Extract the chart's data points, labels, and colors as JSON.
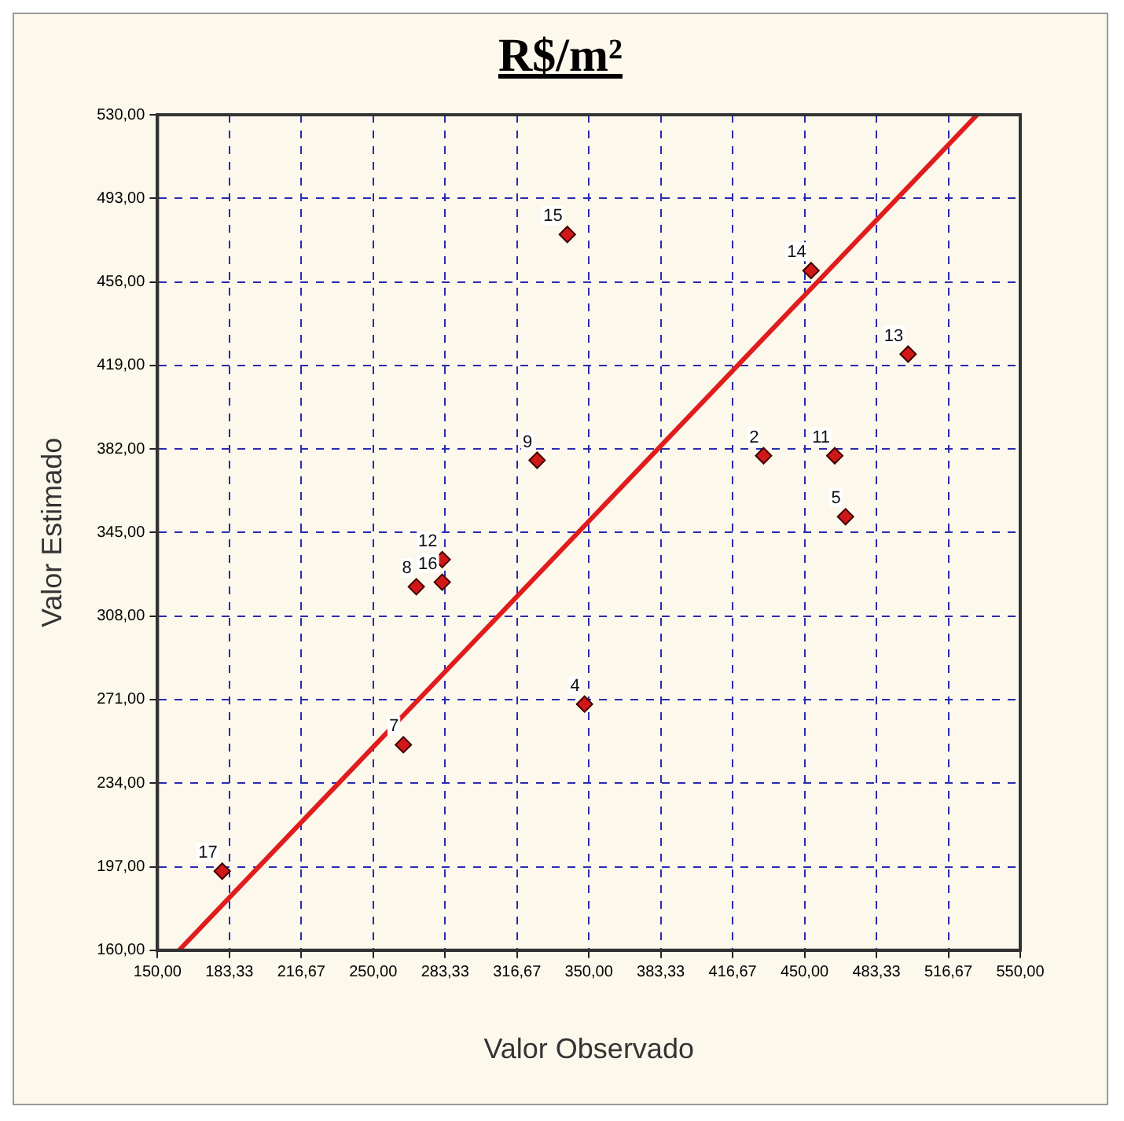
{
  "chart_data": {
    "type": "scatter",
    "title": "R$/m²",
    "xlabel": "Valor Observado",
    "ylabel": "Valor Estimado",
    "xlim": [
      150,
      550
    ],
    "ylim": [
      160,
      530
    ],
    "xticks": [
      {
        "value": 150,
        "label": "150,00"
      },
      {
        "value": 183.33,
        "label": "183,33"
      },
      {
        "value": 216.67,
        "label": "216,67"
      },
      {
        "value": 250,
        "label": "250,00"
      },
      {
        "value": 283.33,
        "label": "283,33"
      },
      {
        "value": 316.67,
        "label": "316,67"
      },
      {
        "value": 350,
        "label": "350,00"
      },
      {
        "value": 383.33,
        "label": "383,33"
      },
      {
        "value": 416.67,
        "label": "416,67"
      },
      {
        "value": 450,
        "label": "450,00"
      },
      {
        "value": 483.33,
        "label": "483,33"
      },
      {
        "value": 516.67,
        "label": "516,67"
      },
      {
        "value": 550,
        "label": "550,00"
      }
    ],
    "yticks": [
      {
        "value": 160,
        "label": "160,00"
      },
      {
        "value": 197,
        "label": "197,00"
      },
      {
        "value": 234,
        "label": "234,00"
      },
      {
        "value": 271,
        "label": "271,00"
      },
      {
        "value": 308,
        "label": "308,00"
      },
      {
        "value": 345,
        "label": "345,00"
      },
      {
        "value": 382,
        "label": "382,00"
      },
      {
        "value": 419,
        "label": "419,00"
      },
      {
        "value": 456,
        "label": "456,00"
      },
      {
        "value": 493,
        "label": "493,00"
      },
      {
        "value": 530,
        "label": "530,00"
      }
    ],
    "grid": true,
    "legend": false,
    "series": [
      {
        "type": "scatter",
        "marker": "diamond",
        "color": "#d01818",
        "x": [
          180,
          264,
          270,
          282,
          282,
          326,
          340,
          348,
          431,
          453,
          464,
          469,
          498
        ],
        "values": [
          195,
          251,
          321,
          323,
          333,
          377,
          477,
          269,
          379,
          461,
          379,
          352,
          424
        ]
      },
      {
        "type": "line",
        "color": "#e01c1c",
        "x": [
          160,
          530
        ],
        "values": [
          160,
          530
        ]
      }
    ],
    "annotations": [
      {
        "text": "17",
        "x": 180,
        "y": 195
      },
      {
        "text": "7",
        "x": 264,
        "y": 251
      },
      {
        "text": "8",
        "x": 270,
        "y": 321
      },
      {
        "text": "16",
        "x": 282,
        "y": 323
      },
      {
        "text": "12",
        "x": 282,
        "y": 333
      },
      {
        "text": "9",
        "x": 326,
        "y": 377
      },
      {
        "text": "15",
        "x": 340,
        "y": 477
      },
      {
        "text": "4",
        "x": 348,
        "y": 269
      },
      {
        "text": "2",
        "x": 431,
        "y": 379
      },
      {
        "text": "14",
        "x": 453,
        "y": 461
      },
      {
        "text": "11",
        "x": 464,
        "y": 379
      },
      {
        "text": "5",
        "x": 469,
        "y": 352
      },
      {
        "text": "13",
        "x": 498,
        "y": 424
      }
    ]
  }
}
